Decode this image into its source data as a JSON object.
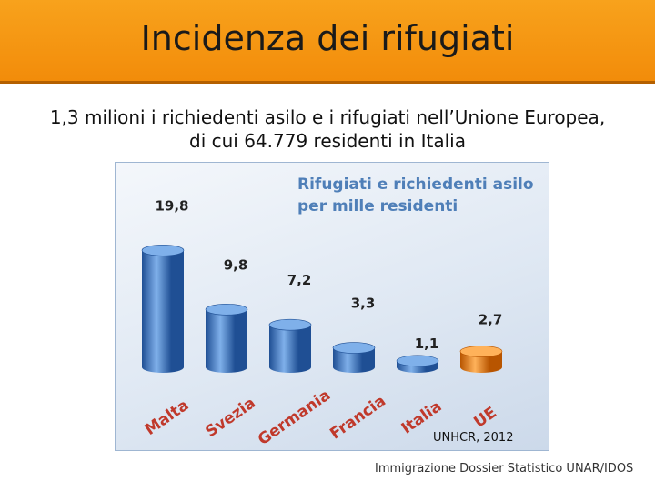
{
  "header": {
    "title": "Incidenza dei rifugiati"
  },
  "subtitle": {
    "line1": "1,3 milioni i richiedenti asilo e i rifugiati nell’Unione Europea,",
    "line2": "di cui 64.779 residenti in Italia"
  },
  "chart_data": {
    "type": "bar",
    "title_line1": "Rifugiati e richiedenti asilo",
    "title_line2": "per mille residenti",
    "categories": [
      "Malta",
      "Svezia",
      "Germania",
      "Francia",
      "Italia",
      "UE"
    ],
    "values": [
      19.8,
      9.8,
      7.2,
      3.3,
      1.1,
      2.7
    ],
    "value_labels": [
      "19,8",
      "9,8",
      "7,2",
      "3,3",
      "1,1",
      "2,7"
    ],
    "ylim": [
      0,
      20
    ],
    "grid": false,
    "colors": {
      "bar": "#3a74c2",
      "bar_dark": "#1f4f94",
      "bar_light": "#7fb0ea",
      "highlight": "#f07a10",
      "highlight_dark": "#b85500",
      "highlight_light": "#ffb25a",
      "category_label": "#c0392b",
      "title": "#4f7fb8"
    },
    "highlight_category": "UE"
  },
  "source": "UNHCR, 2012",
  "footer": "Immigrazione Dossier Statistico UNAR/IDOS"
}
